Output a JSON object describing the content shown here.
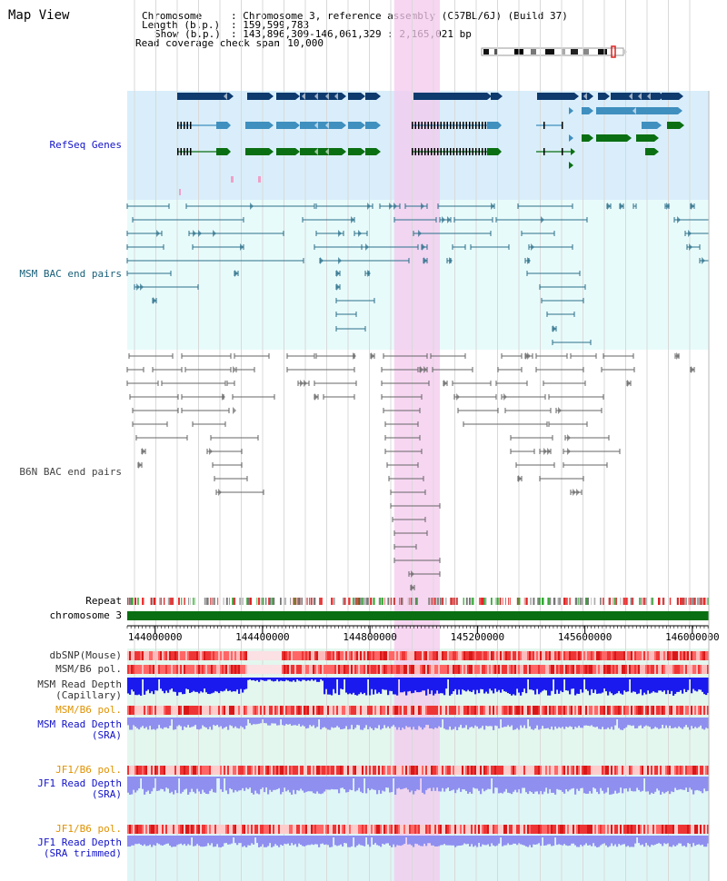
{
  "title": "Map View",
  "info": {
    "chromosome_key": "Chromosome",
    "chromosome_val": ": Chromosome 3, reference assembly (C57BL/6J) (Build 37)",
    "length_key": "Length (b.p.)",
    "length_val": ": 159,599,783",
    "show_key": "Show (b.p.)",
    "show_val": ": 143,896,309-146,061,329 : 2,165,021 bp",
    "span_key": "Read coverage check span",
    "span_val": ": 10,000"
  },
  "track_labels": {
    "refseq": "RefSeq Genes",
    "msm_bac": "MSM BAC end pairs",
    "b6n_bac": "B6N BAC end pairs",
    "repeat": "Repeat",
    "chromosome": "chromosome 3",
    "dbsnp": "dbSNP(Mouse)",
    "msm_b6_pol_1": "MSM/B6 pol.",
    "msm_depth_cap_1": "MSM Read Depth",
    "msm_depth_cap_2": "(Capillary)",
    "msm_b6_pol_2": "MSM/B6 pol.",
    "msm_depth_sra_1": "MSM Read Depth",
    "msm_depth_sra_2": "(SRA)",
    "jf1_b6_pol_1": "JF1/B6 pol.",
    "jf1_depth_sra_1": "JF1 Read Depth",
    "jf1_depth_sra_2": "(SRA)",
    "jf1_b6_pol_2": "JF1/B6 pol.",
    "jf1_depth_trim_1": "JF1 Read Depth",
    "jf1_depth_trim_2": "(SRA trimmed)"
  },
  "axis": {
    "unit": "bp",
    "range": [
      143896309,
      146061329
    ],
    "ticks": [
      "144000000",
      "144400000",
      "144800000",
      "145200000",
      "145600000",
      "146000000"
    ]
  },
  "highlight": {
    "start": 144890000,
    "end": 145060000
  },
  "colors": {
    "refseq_dark": "#0e3a6e",
    "refseq_mid": "#3f8fbf",
    "refseq_green": "#0a6f12",
    "msm_bac": "#2b6f8a",
    "b6n_bac": "#666666",
    "depth_capillary": "#1a1aee",
    "depth_sra": "#8f8ff0",
    "polymorphism": "#ee3030",
    "highlight": "#f4c8ee"
  }
}
